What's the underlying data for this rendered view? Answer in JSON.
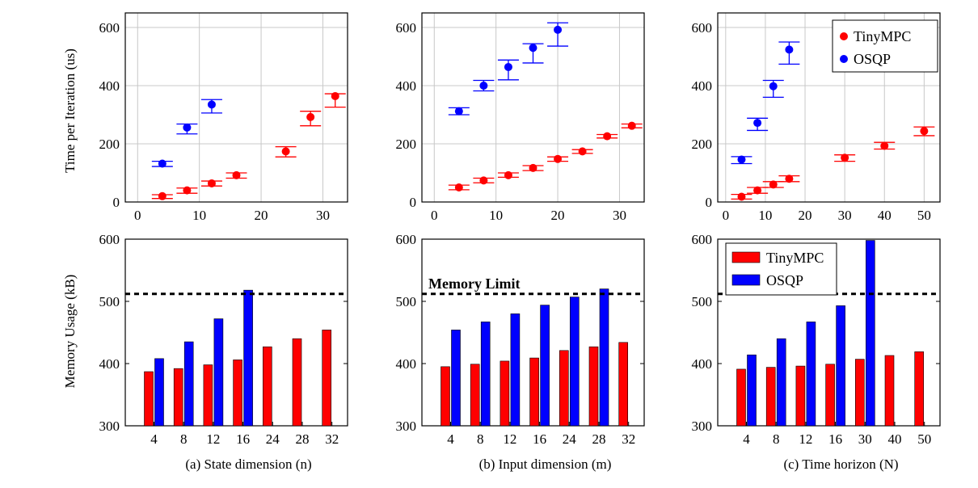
{
  "colors": {
    "tinympc": "#ff0000",
    "osqp": "#0000ff",
    "grid": "#c8c8c8",
    "axis": "#000000"
  },
  "shared": {
    "time_ylabel": "Time per Iteration (us)",
    "memory_ylabel": "Memory Usage (kB)",
    "memory_limit": 512
  },
  "chart_data": [
    {
      "type": "scatter",
      "panel": "a-top",
      "ylabel": "Time per Iteration (us)",
      "xlim": [
        -2,
        34
      ],
      "ylim": [
        0,
        650
      ],
      "xticks": [
        0,
        10,
        20,
        30
      ],
      "yticks": [
        0,
        200,
        400,
        600
      ],
      "grid": true,
      "series": [
        {
          "name": "TinyMPC",
          "x": [
            4,
            8,
            12,
            16,
            24,
            28,
            32
          ],
          "y": [
            20,
            40,
            64,
            92,
            174,
            292,
            364
          ],
          "err_low": [
            12,
            30,
            55,
            82,
            155,
            262,
            326
          ],
          "err_high": [
            25,
            48,
            72,
            100,
            190,
            312,
            372
          ]
        },
        {
          "name": "OSQP",
          "x": [
            4,
            8,
            12
          ],
          "y": [
            132,
            256,
            335
          ],
          "err_low": [
            122,
            234,
            306
          ],
          "err_high": [
            140,
            268,
            352
          ]
        }
      ]
    },
    {
      "type": "scatter",
      "panel": "b-top",
      "xlim": [
        -2,
        34
      ],
      "ylim": [
        0,
        650
      ],
      "xticks": [
        0,
        10,
        20,
        30
      ],
      "yticks": [
        0,
        200,
        400,
        600
      ],
      "grid": true,
      "series": [
        {
          "name": "TinyMPC",
          "x": [
            4,
            8,
            12,
            16,
            20,
            24,
            28,
            32
          ],
          "y": [
            50,
            74,
            92,
            117,
            148,
            174,
            226,
            262
          ],
          "err_low": [
            42,
            66,
            85,
            108,
            140,
            167,
            220,
            255
          ],
          "err_high": [
            58,
            82,
            100,
            125,
            155,
            180,
            232,
            268
          ]
        },
        {
          "name": "OSQP",
          "x": [
            4,
            8,
            12,
            16,
            20
          ],
          "y": [
            312,
            400,
            464,
            530,
            592
          ],
          "err_low": [
            300,
            382,
            420,
            478,
            536
          ],
          "err_high": [
            324,
            418,
            488,
            544,
            616
          ]
        }
      ]
    },
    {
      "type": "scatter",
      "panel": "c-top",
      "xlim": [
        -2,
        54
      ],
      "ylim": [
        0,
        650
      ],
      "xticks": [
        0,
        10,
        20,
        30,
        40,
        50
      ],
      "yticks": [
        0,
        200,
        400,
        600
      ],
      "grid": true,
      "legend": "top-right",
      "series": [
        {
          "name": "TinyMPC",
          "x": [
            4,
            8,
            12,
            16,
            30,
            40,
            50
          ],
          "y": [
            18,
            40,
            60,
            80,
            152,
            193,
            244
          ],
          "err_low": [
            10,
            30,
            50,
            70,
            140,
            182,
            228
          ],
          "err_high": [
            26,
            50,
            70,
            90,
            162,
            205,
            258
          ]
        },
        {
          "name": "OSQP",
          "x": [
            4,
            8,
            12,
            16
          ],
          "y": [
            146,
            272,
            398,
            524
          ],
          "err_low": [
            132,
            246,
            360,
            474
          ],
          "err_high": [
            156,
            288,
            418,
            550
          ]
        }
      ]
    },
    {
      "type": "bar",
      "panel": "a-bottom",
      "ylabel": "Memory Usage (kB)",
      "xlabel": "(a) State dimension (n)",
      "ylim": [
        300,
        600
      ],
      "yticks": [
        300,
        400,
        500,
        600
      ],
      "categories": [
        "4",
        "8",
        "12",
        "16",
        "24",
        "28",
        "32"
      ],
      "series": [
        {
          "name": "TinyMPC",
          "values": [
            387,
            392,
            398,
            406,
            427,
            440,
            454
          ]
        },
        {
          "name": "OSQP",
          "values": [
            408,
            435,
            472,
            518,
            null,
            null,
            null
          ]
        }
      ],
      "threshold": 512
    },
    {
      "type": "bar",
      "panel": "b-bottom",
      "xlabel": "(b) Input dimension (m)",
      "ylim": [
        300,
        600
      ],
      "yticks": [
        300,
        400,
        500,
        600
      ],
      "categories": [
        "4",
        "8",
        "12",
        "16",
        "24",
        "28",
        "32"
      ],
      "series": [
        {
          "name": "TinyMPC",
          "values": [
            395,
            399,
            404,
            409,
            421,
            427,
            434
          ]
        },
        {
          "name": "OSQP",
          "values": [
            454,
            467,
            480,
            494,
            507,
            520,
            null
          ]
        }
      ],
      "threshold": 512,
      "threshold_label": "Memory Limit"
    },
    {
      "type": "bar",
      "panel": "c-bottom",
      "xlabel": "(c) Time horizon (N)",
      "ylim": [
        300,
        600
      ],
      "yticks": [
        300,
        400,
        500,
        600
      ],
      "categories": [
        "4",
        "8",
        "12",
        "16",
        "30",
        "40",
        "50"
      ],
      "series": [
        {
          "name": "TinyMPC",
          "values": [
            391,
            394,
            396,
            399,
            407,
            413,
            419
          ]
        },
        {
          "name": "OSQP",
          "values": [
            414,
            440,
            467,
            493,
            598,
            null,
            null
          ]
        }
      ],
      "threshold": 512,
      "legend": "top-left"
    }
  ]
}
